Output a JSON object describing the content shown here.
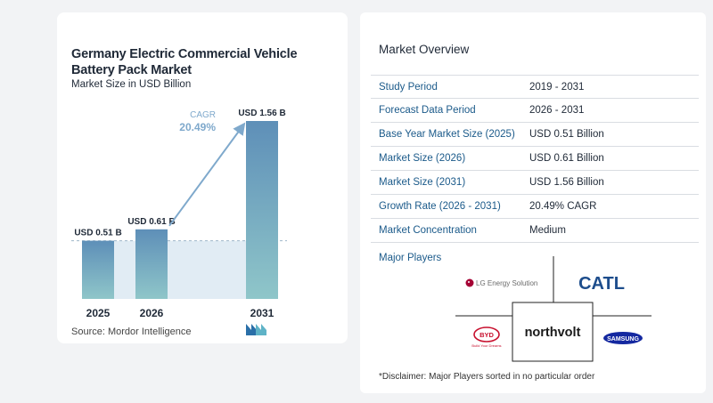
{
  "chart_data": {
    "type": "bar",
    "title": "Germany Electric Commercial Vehicle Battery Pack Market",
    "subtitle": "Market Size in USD Billion",
    "categories": [
      "2025",
      "2026",
      "2031"
    ],
    "values": [
      0.51,
      0.61,
      1.56
    ],
    "data_labels": [
      "USD 0.51 B",
      "USD 0.61 B",
      "USD 1.56 B"
    ],
    "ylim": [
      0,
      1.56
    ],
    "cagr_label": "CAGR",
    "cagr_value": "20.49%",
    "colors": {
      "bar_light": "#5e8fb8",
      "bar_dark": "#8fc6c9",
      "band": "#e1ecf4",
      "arrow": "#7fa9cc"
    }
  },
  "source": "Source:  Mordor Intelligence",
  "overview": {
    "title": "Market Overview",
    "rows": [
      {
        "key": "Study Period",
        "value": "2019 - 2031"
      },
      {
        "key": "Forecast Data Period",
        "value": "2026 - 2031"
      },
      {
        "key": "Base Year Market Size (2025)",
        "value": "USD 0.51 Billion"
      },
      {
        "key": "Market Size (2026)",
        "value": "USD 0.61 Billion"
      },
      {
        "key": "Market Size (2031)",
        "value": "USD 1.56 Billion"
      },
      {
        "key": "Growth Rate (2026 - 2031)",
        "value": "20.49% CAGR"
      },
      {
        "key": "Market Concentration",
        "value": "Medium"
      }
    ]
  },
  "players": {
    "title": "Major Players",
    "lg": "LG Energy Solution",
    "catl": "CATL",
    "byd": "BYD",
    "byd_sub": "Build Your Dreams",
    "northvolt": "northvolt",
    "samsung": "SAMSUNG"
  },
  "disclaimer": "*Disclaimer: Major Players sorted in no particular order",
  "colors": {
    "accent": "#1b5a8a",
    "catl": "#1d4d8c",
    "lg": "#a50034",
    "byd": "#c8102e",
    "samsung": "#1428a0"
  }
}
